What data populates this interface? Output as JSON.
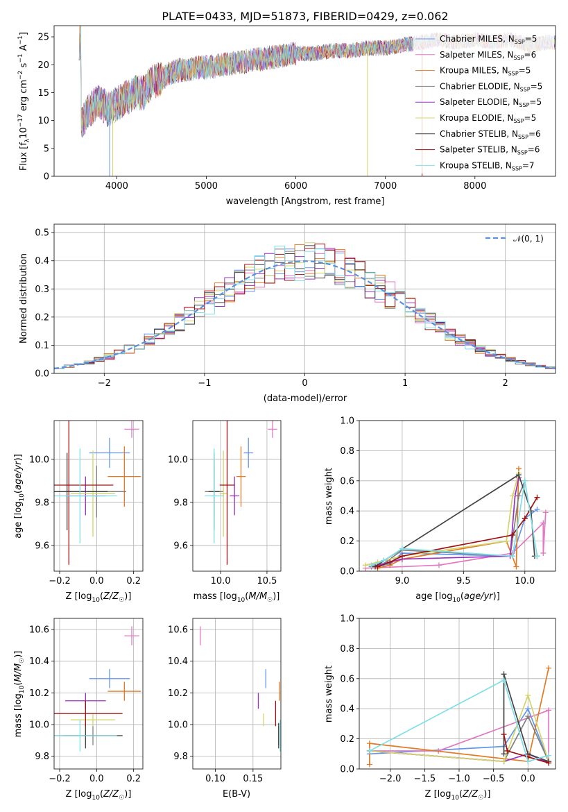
{
  "title": "PLATE=0433, MJD=51873, FIBERID=0429, z=0.062",
  "colors": [
    "#6495ed",
    "#e377c2",
    "#e07b24",
    "#808080",
    "#9b30c0",
    "#d4d46a",
    "#444444",
    "#a01010",
    "#7fdfe8"
  ],
  "models": [
    {
      "name": "Chabrier MILES",
      "nssp": "5",
      "color": "#6495ed"
    },
    {
      "name": "Salpeter MILES",
      "nssp": "6",
      "color": "#e377c2"
    },
    {
      "name": "Kroupa MILES",
      "nssp": "5",
      "color": "#e07b24"
    },
    {
      "name": "Chabrier ELODIE",
      "nssp": "5",
      "color": "#808080"
    },
    {
      "name": "Salpeter ELODIE",
      "nssp": "5",
      "color": "#9b30c0"
    },
    {
      "name": "Kroupa ELODIE",
      "nssp": "5",
      "color": "#d4d46a"
    },
    {
      "name": "Chabrier STELIB",
      "nssp": "6",
      "color": "#444444"
    },
    {
      "name": "Salpeter STELIB",
      "nssp": "6",
      "color": "#a01010"
    },
    {
      "name": "Kroupa STELIB",
      "nssp": "7",
      "color": "#7fdfe8"
    }
  ],
  "chart_data": [
    {
      "id": "spectrum",
      "type": "line",
      "xlabel": "wavelength [Angstrom, rest frame]",
      "ylabel": "Flux [f_λ10^-17 erg cm^-2 s^-1 A^-1]",
      "xlim": [
        3300,
        8900
      ],
      "ylim": [
        0,
        27
      ],
      "xticks": [
        4000,
        5000,
        6000,
        7000,
        8000
      ],
      "yticks": [
        0,
        5,
        10,
        15,
        20,
        25
      ],
      "x": [
        3600,
        3700,
        3800,
        3900,
        4000,
        4100,
        4200,
        4300,
        4400,
        4500,
        4600,
        4700,
        4800,
        4900,
        5000,
        5200,
        5400,
        5600,
        5800,
        6000,
        6200,
        6400,
        6600,
        6800,
        7000,
        7200,
        7400,
        7600,
        7800,
        8000,
        8200,
        8400,
        8600,
        8800
      ],
      "y": [
        9.5,
        12,
        13.5,
        12,
        13,
        14,
        15,
        15,
        17,
        17.5,
        18.5,
        19,
        19,
        19.5,
        19.5,
        20,
        20.5,
        21,
        21.5,
        22,
        22,
        22.5,
        22.5,
        23,
        23,
        23.5,
        24,
        24.5,
        24,
        24.5,
        24,
        24.5,
        23.5,
        24
      ]
    },
    {
      "id": "residual_hist",
      "type": "line",
      "xlabel": "(data-model)/error",
      "ylabel": "Normed distribution",
      "xlim": [
        -2.5,
        2.5
      ],
      "ylim": [
        0,
        0.53
      ],
      "xticks": [
        -2,
        -1,
        0,
        1,
        2
      ],
      "yticks": [
        0.0,
        0.1,
        0.2,
        0.3,
        0.4,
        0.5
      ],
      "legend": "𝒩(0, 1)",
      "legend_loc": "upper right"
    },
    {
      "id": "age_vs_Z",
      "type": "scatter",
      "xlabel": "Z [log10(Z/Z☉)]",
      "ylabel": "age [log10(age/yr)]",
      "xlim": [
        -0.23,
        0.25
      ],
      "ylim": [
        9.48,
        10.18
      ],
      "xticks": [
        -0.2,
        0.0,
        0.2
      ],
      "yticks": [
        9.6,
        9.8,
        10.0
      ],
      "points": [
        {
          "x": 0.07,
          "y": 10.03,
          "xerr": 0.11,
          "yerr": 0.07
        },
        {
          "x": 0.19,
          "y": 10.14,
          "xerr": 0.04,
          "yerr": 0.04
        },
        {
          "x": 0.15,
          "y": 9.92,
          "xerr": 0.09,
          "yerr": 0.14
        },
        {
          "x": 0.0,
          "y": 9.85,
          "xerr": 0.16,
          "yerr": 0.12
        },
        {
          "x": -0.06,
          "y": 9.83,
          "xerr": 0.11,
          "yerr": 0.09
        },
        {
          "x": -0.02,
          "y": 9.84,
          "xerr": 0.12,
          "yerr": 0.2
        },
        {
          "x": -0.16,
          "y": 9.85,
          "xerr": 0.22,
          "yerr": 0.18
        },
        {
          "x": -0.15,
          "y": 9.88,
          "xerr": 0.24,
          "yerr": 0.37
        },
        {
          "x": -0.09,
          "y": 9.83,
          "xerr": 0.2,
          "yerr": 0.22
        }
      ]
    },
    {
      "id": "age_vs_mass",
      "type": "scatter",
      "xlabel": "mass [log10(M/M☉)]",
      "ylabel": "",
      "xlim": [
        9.7,
        10.65
      ],
      "ylim": [
        9.48,
        10.18
      ],
      "xticks": [
        10.0,
        10.5
      ],
      "yticks": [
        9.6,
        9.8,
        10.0
      ],
      "points": [
        {
          "x": 10.3,
          "y": 10.03,
          "xerr": 0.05,
          "yerr": 0.07
        },
        {
          "x": 10.56,
          "y": 10.14,
          "xerr": 0.05,
          "yerr": 0.04
        },
        {
          "x": 10.22,
          "y": 9.92,
          "xerr": 0.05,
          "yerr": 0.14
        },
        {
          "x": 9.93,
          "y": 9.85,
          "xerr": 0.1,
          "yerr": 0.12
        },
        {
          "x": 10.15,
          "y": 9.83,
          "xerr": 0.05,
          "yerr": 0.09
        },
        {
          "x": 10.03,
          "y": 9.84,
          "xerr": 0.04,
          "yerr": 0.2
        },
        {
          "x": 9.93,
          "y": 9.85,
          "xerr": 0.06,
          "yerr": 0.18
        },
        {
          "x": 10.07,
          "y": 9.88,
          "xerr": 0.08,
          "yerr": 0.37
        },
        {
          "x": 9.93,
          "y": 9.83,
          "xerr": 0.1,
          "yerr": 0.22
        }
      ]
    },
    {
      "id": "mass_weight_vs_age",
      "type": "line",
      "xlabel": "age [log10(age/yr)]",
      "ylabel": "mass weight",
      "xlim": [
        8.65,
        10.25
      ],
      "ylim": [
        0,
        1
      ],
      "xticks": [
        9.0,
        9.5,
        10.0
      ],
      "yticks": [
        0.0,
        0.2,
        0.4,
        0.6,
        0.8,
        1.0
      ],
      "series": [
        {
          "x": [
            8.8,
            8.9,
            9.0,
            9.9,
            10.0,
            10.1
          ],
          "y": [
            0.03,
            0.05,
            0.12,
            0.1,
            0.35,
            0.41
          ]
        },
        {
          "x": [
            8.7,
            9.3,
            9.9,
            10.15,
            10.15,
            10.17
          ],
          "y": [
            0.02,
            0.04,
            0.12,
            0.32,
            0.12,
            0.39
          ]
        },
        {
          "x": [
            8.8,
            8.9,
            9.0,
            9.85,
            9.93,
            9.95
          ],
          "y": [
            0.02,
            0.04,
            0.08,
            0.2,
            0.03,
            0.68
          ]
        },
        {
          "x": [
            8.75,
            8.85,
            9.0,
            9.88,
            9.95,
            10.0
          ],
          "y": [
            0.03,
            0.05,
            0.14,
            0.1,
            0.5,
            0.6
          ]
        },
        {
          "x": [
            8.8,
            8.9,
            9.0,
            9.88,
            9.92,
            9.95
          ],
          "y": [
            0.04,
            0.06,
            0.08,
            0.1,
            0.5,
            0.62
          ]
        },
        {
          "x": [
            8.7,
            8.8,
            9.0,
            9.85,
            9.9,
            9.95
          ],
          "y": [
            0.04,
            0.06,
            0.1,
            0.2,
            0.5,
            0.65
          ]
        },
        {
          "x": [
            8.78,
            8.85,
            9.95,
            10.05,
            10.08,
            10.1
          ],
          "y": [
            0.03,
            0.07,
            0.64,
            0.4,
            0.1,
            0.1
          ]
        },
        {
          "x": [
            8.8,
            8.9,
            9.0,
            9.9,
            10.0,
            10.1
          ],
          "y": [
            0.03,
            0.06,
            0.1,
            0.24,
            0.35,
            0.49
          ]
        },
        {
          "x": [
            8.75,
            8.85,
            9.0,
            9.9,
            10.0,
            10.1
          ],
          "y": [
            0.04,
            0.07,
            0.15,
            0.1,
            0.6,
            0.1
          ]
        }
      ]
    },
    {
      "id": "mass_vs_Z",
      "type": "scatter",
      "xlabel": "Z [log10(Z/Z☉)]",
      "ylabel": "mass [log10(M/M☉)]",
      "xlim": [
        -0.23,
        0.25
      ],
      "ylim": [
        9.72,
        10.67
      ],
      "xticks": [
        -0.2,
        0.0,
        0.2
      ],
      "yticks": [
        9.8,
        10.0,
        10.2,
        10.4,
        10.6
      ],
      "points": [
        {
          "x": 0.07,
          "y": 10.29,
          "xerr": 0.11,
          "yerr": 0.06
        },
        {
          "x": 0.19,
          "y": 10.56,
          "xerr": 0.04,
          "yerr": 0.06
        },
        {
          "x": 0.15,
          "y": 10.21,
          "xerr": 0.09,
          "yerr": 0.06
        },
        {
          "x": -0.02,
          "y": 9.93,
          "xerr": 0.16,
          "yerr": 0.06
        },
        {
          "x": -0.06,
          "y": 10.15,
          "xerr": 0.11,
          "yerr": 0.05
        },
        {
          "x": -0.02,
          "y": 10.03,
          "xerr": 0.12,
          "yerr": 0.04
        },
        {
          "x": -0.06,
          "y": 9.93,
          "xerr": 0.2,
          "yerr": 0.08
        },
        {
          "x": -0.06,
          "y": 10.07,
          "xerr": 0.2,
          "yerr": 0.08
        },
        {
          "x": -0.09,
          "y": 9.93,
          "xerr": 0.2,
          "yerr": 0.1
        }
      ]
    },
    {
      "id": "mass_vs_ebv",
      "type": "scatter",
      "xlabel": "E(B-V)",
      "ylabel": "",
      "xlim": [
        0.07,
        0.187
      ],
      "ylim": [
        9.72,
        10.67
      ],
      "xticks": [
        0.1,
        0.15
      ],
      "yticks": [
        9.8,
        10.0,
        10.2,
        10.4,
        10.6
      ],
      "points": [
        {
          "x": 0.167,
          "y": 10.29,
          "xerr": 0.0,
          "yerr": 0.06
        },
        {
          "x": 0.08,
          "y": 10.56,
          "xerr": 0.0,
          "yerr": 0.06
        },
        {
          "x": 0.185,
          "y": 10.21,
          "xerr": 0.0,
          "yerr": 0.06
        },
        {
          "x": 0.184,
          "y": 9.93,
          "xerr": 0.0,
          "yerr": 0.06
        },
        {
          "x": 0.157,
          "y": 10.15,
          "xerr": 0.0,
          "yerr": 0.05
        },
        {
          "x": 0.164,
          "y": 10.03,
          "xerr": 0.0,
          "yerr": 0.04
        },
        {
          "x": 0.184,
          "y": 9.93,
          "xerr": 0.0,
          "yerr": 0.08
        },
        {
          "x": 0.18,
          "y": 10.07,
          "xerr": 0.0,
          "yerr": 0.08
        },
        {
          "x": 0.186,
          "y": 9.93,
          "xerr": 0.0,
          "yerr": 0.1
        }
      ]
    },
    {
      "id": "mass_weight_vs_Z",
      "type": "line",
      "xlabel": "Z [log10(Z/Z☉)]",
      "ylabel": "mass weight",
      "xlim": [
        -2.45,
        0.4
      ],
      "ylim": [
        0,
        1
      ],
      "xticks": [
        -2.0,
        -1.5,
        -1.0,
        -0.5,
        0.0
      ],
      "yticks": [
        0.0,
        0.2,
        0.4,
        0.6,
        0.8,
        1.0
      ],
      "series": [
        {
          "x": [
            -2.3,
            -0.35,
            0.0,
            0.3
          ],
          "y": [
            0.1,
            0.15,
            0.4,
            0.05
          ]
        },
        {
          "x": [
            -2.3,
            -1.3,
            0.3,
            0.3
          ],
          "y": [
            0.12,
            0.12,
            0.39,
            0.05
          ]
        },
        {
          "x": [
            -2.3,
            -2.3,
            0.0,
            0.3
          ],
          "y": [
            0.03,
            0.17,
            0.05,
            0.67
          ]
        },
        {
          "x": [
            -2.3,
            -0.35,
            0.0,
            0.3
          ],
          "y": [
            0.12,
            0.05,
            0.35,
            0.05
          ]
        },
        {
          "x": [
            -2.3,
            -0.35,
            0.0,
            0.3
          ],
          "y": [
            0.12,
            0.05,
            0.1,
            0.04
          ]
        },
        {
          "x": [
            -2.3,
            -0.35,
            0.0,
            0.3
          ],
          "y": [
            0.12,
            0.05,
            0.49,
            0.05
          ]
        },
        {
          "x": [
            -0.35,
            -0.35,
            0.0,
            0.3
          ],
          "y": [
            0.1,
            0.63,
            0.1,
            0.05
          ]
        },
        {
          "x": [
            -0.35,
            -0.3,
            0.0,
            0.3
          ],
          "y": [
            0.23,
            0.12,
            0.08,
            0.04
          ]
        },
        {
          "x": [
            -2.3,
            -0.35,
            0.0,
            0.3
          ],
          "y": [
            0.12,
            0.59,
            0.05,
            0.09
          ]
        }
      ]
    }
  ]
}
